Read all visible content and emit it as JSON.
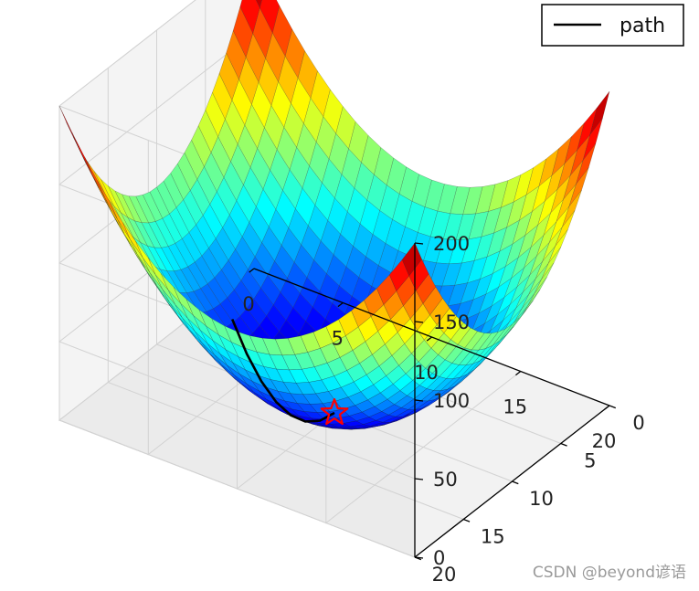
{
  "chart_data": {
    "type": "surface3d",
    "title": "",
    "function": "z = (x - 10)^2 + (y - 10)^2",
    "x": {
      "ticks": [
        0,
        5,
        10,
        15,
        20
      ],
      "range": [
        0,
        20
      ]
    },
    "y": {
      "ticks": [
        0,
        5,
        10,
        15,
        20
      ],
      "range": [
        0,
        20
      ]
    },
    "z": {
      "ticks": [
        0,
        50,
        100,
        150,
        200
      ],
      "range": [
        0,
        200
      ]
    },
    "colormap": "jet",
    "grid": true,
    "series": [
      {
        "name": "path",
        "type": "line",
        "color": "#000000",
        "points": [
          [
            10,
            10.0,
            0
          ],
          [
            10,
            11.5,
            2.25
          ],
          [
            10,
            13.0,
            9
          ],
          [
            10,
            14.5,
            20.25
          ],
          [
            10,
            16.0,
            36
          ],
          [
            10,
            17.5,
            56.25
          ],
          [
            10,
            19.0,
            81
          ],
          [
            10,
            20.5,
            110.25
          ]
        ]
      }
    ],
    "marker": {
      "type": "star",
      "color": "#ff0000",
      "point": [
        10,
        10,
        0
      ]
    },
    "legend": {
      "position": "top-right",
      "entries": [
        "path"
      ]
    }
  },
  "watermark": "CSDN @beyond谚语"
}
